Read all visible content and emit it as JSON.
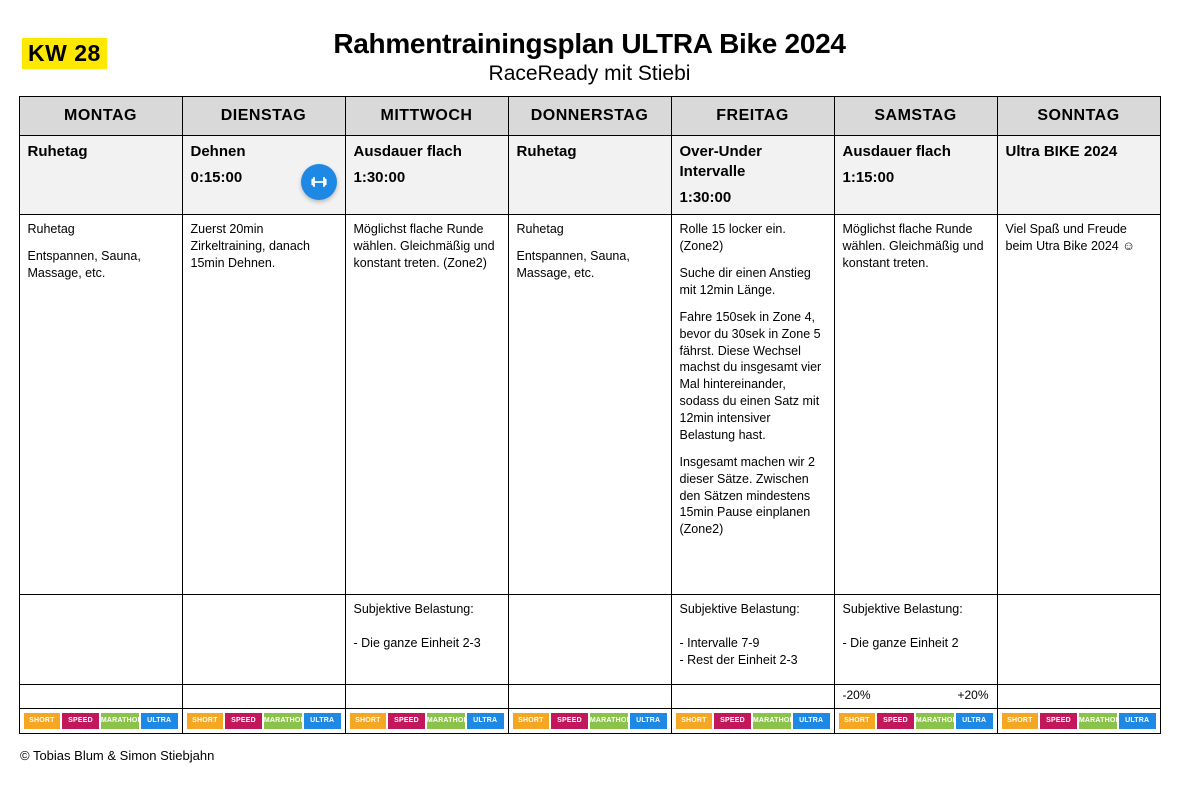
{
  "week_badge": "KW 28",
  "title": "Rahmentrainingsplan ULTRA Bike 2024",
  "subtitle": "RaceReady mit Stiebi",
  "footer": "© Tobias Blum & Simon Stiebjahn",
  "day_headers": [
    "MONTAG",
    "DIENSTAG",
    "MITTWOCH",
    "DONNERSTAG",
    "FREITAG",
    "SAMSTAG",
    "SONNTAG"
  ],
  "tags": [
    {
      "label": "SHORT",
      "color": "#f5a623"
    },
    {
      "label": "SPEED",
      "color": "#c2185b"
    },
    {
      "label": "MARATHON",
      "color": "#8bc34a"
    },
    {
      "label": "ULTRA",
      "color": "#1e88e5"
    }
  ],
  "days": [
    {
      "title": "Ruhetag",
      "duration": "",
      "icon": false,
      "desc": [
        "Ruhetag",
        "Entspannen, Sauna, Massage, etc."
      ],
      "belastung": "",
      "adjust": ""
    },
    {
      "title": "Dehnen",
      "duration": "0:15:00",
      "icon": true,
      "desc": [
        "Zuerst 20min Zirkeltraining, danach 15min Dehnen."
      ],
      "belastung": "",
      "adjust": ""
    },
    {
      "title": "Ausdauer flach",
      "duration": "1:30:00",
      "icon": false,
      "desc": [
        "Möglichst flache Runde wählen. Gleichmäßig und konstant treten. (Zone2)"
      ],
      "belastung": "Subjektive Belastung:\n\n- Die ganze Einheit 2-3",
      "adjust": ""
    },
    {
      "title": "Ruhetag",
      "duration": "",
      "icon": false,
      "desc": [
        "Ruhetag",
        "Entspannen, Sauna, Massage, etc."
      ],
      "belastung": "",
      "adjust": ""
    },
    {
      "title": "Over-Under Intervalle",
      "duration": "1:30:00",
      "icon": false,
      "desc": [
        "Rolle 15 locker ein. (Zone2)",
        "Suche dir einen Anstieg mit 12min Länge.",
        "Fahre 150sek in Zone 4, bevor du 30sek in Zone 5 fährst. Diese Wechsel machst du insgesamt vier Mal hintereinander, sodass du einen Satz mit 12min intensiver Belastung hast.",
        "Insgesamt machen wir 2 dieser Sätze. Zwischen den Sätzen mindestens 15min Pause einplanen (Zone2)"
      ],
      "belastung": "Subjektive Belastung:\n\n- Intervalle 7-9\n- Rest der Einheit 2-3",
      "adjust": ""
    },
    {
      "title": "Ausdauer flach",
      "duration": "1:15:00",
      "icon": false,
      "desc": [
        "Möglichst flache Runde wählen. Gleichmäßig und konstant treten."
      ],
      "belastung": "Subjektive Belastung:\n\n- Die ganze Einheit 2",
      "adjust": {
        "minus": "-20%",
        "plus": "+20%"
      }
    },
    {
      "title": "Ultra BIKE 2024",
      "duration": "",
      "icon": false,
      "desc": [
        "Viel Spaß und Freude beim Utra Bike 2024 ☺"
      ],
      "belastung": "",
      "adjust": ""
    }
  ]
}
